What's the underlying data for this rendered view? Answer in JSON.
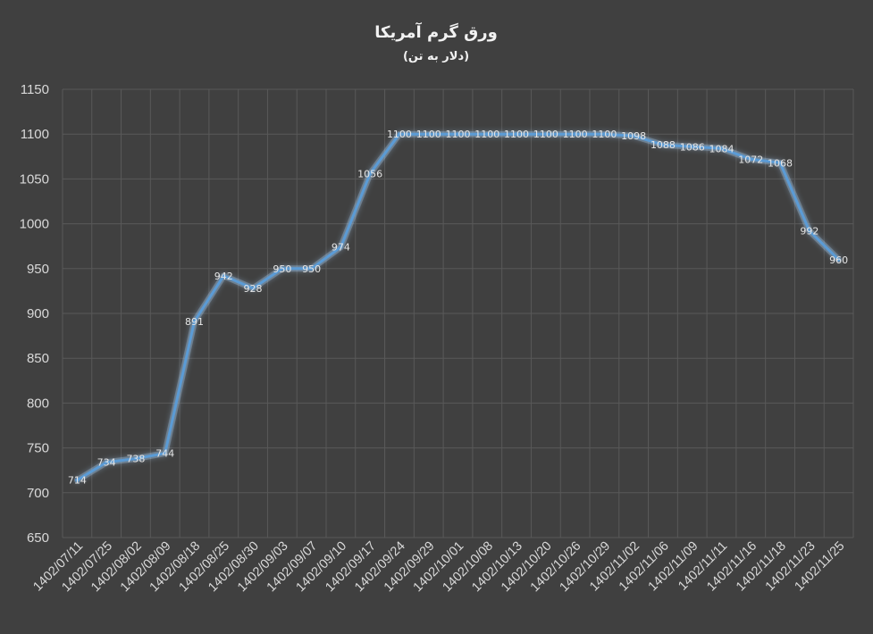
{
  "chart_data": {
    "type": "line",
    "title": "ورق گرم آمریکا",
    "subtitle": "(دلار به تن)",
    "xlabel": "",
    "ylabel": "",
    "ylim": [
      650,
      1150
    ],
    "yticks": [
      650,
      700,
      750,
      800,
      850,
      900,
      950,
      1000,
      1050,
      1100,
      1150
    ],
    "grid": true,
    "legend": "none",
    "categories": [
      "1402/07/11",
      "1402/07/25",
      "1402/08/02",
      "1402/08/09",
      "1402/08/18",
      "1402/08/25",
      "1402/08/30",
      "1402/09/03",
      "1402/09/07",
      "1402/09/10",
      "1402/09/17",
      "1402/09/24",
      "1402/09/29",
      "1402/10/01",
      "1402/10/08",
      "1402/10/13",
      "1402/10/20",
      "1402/10/26",
      "1402/10/29",
      "1402/11/02",
      "1402/11/06",
      "1402/11/09",
      "1402/11/11",
      "1402/11/16",
      "1402/11/18",
      "1402/11/23",
      "1402/11/25"
    ],
    "series": [
      {
        "values": [
          714,
          734,
          738,
          744,
          891,
          942,
          928,
          950,
          950,
          974,
          1056,
          1100,
          1100,
          1100,
          1100,
          1100,
          1100,
          1100,
          1100,
          1098,
          1088,
          1086,
          1084,
          1072,
          1068,
          992,
          960
        ]
      }
    ],
    "colors": {
      "line": "#5b9bd5",
      "glow": "#9dc3e6",
      "grid": "#595959",
      "background": "#404040",
      "text": "#d9d9d9"
    }
  }
}
